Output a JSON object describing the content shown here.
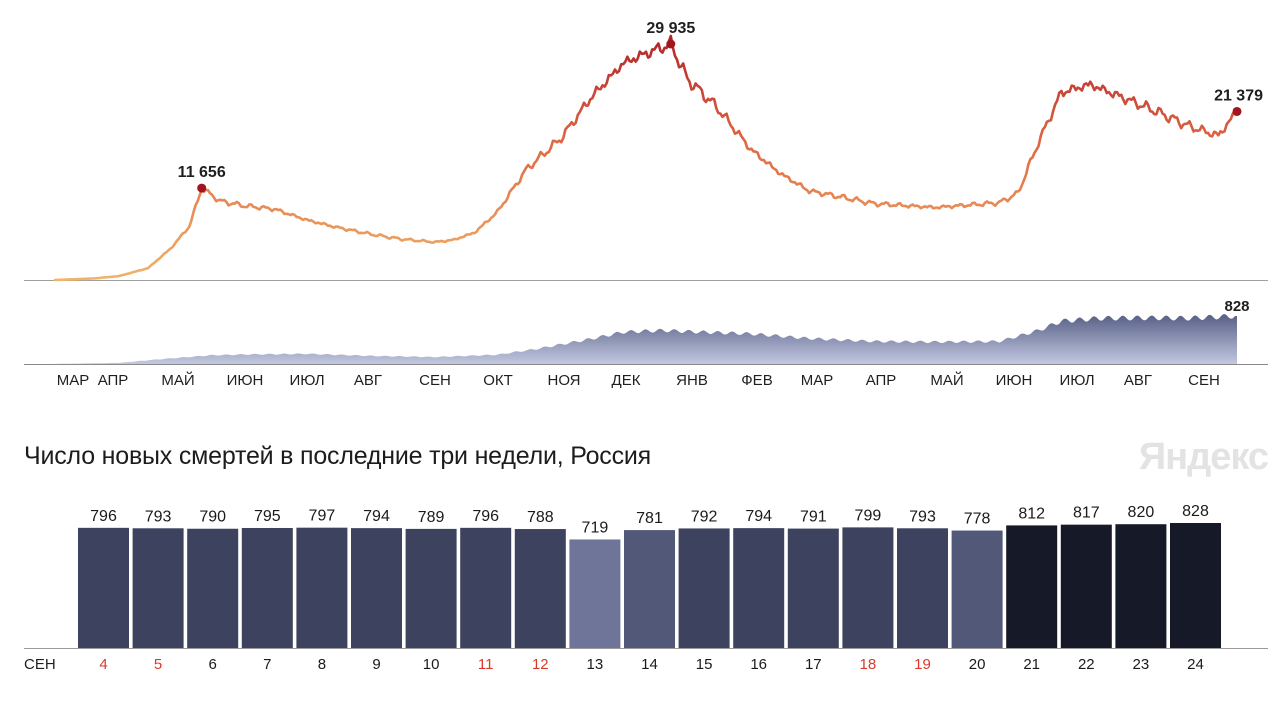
{
  "chart_data": [
    {
      "type": "line",
      "title": "",
      "series": [
        {
          "name": ""
        }
      ],
      "x": [
        "2020-03-01",
        "2020-03-20",
        "2020-04-01",
        "2020-04-15",
        "2020-04-26",
        "2020-05-05",
        "2020-05-11",
        "2020-05-20",
        "2020-06-01",
        "2020-06-15",
        "2020-07-01",
        "2020-07-15",
        "2020-08-01",
        "2020-08-15",
        "2020-09-01",
        "2020-09-10",
        "2020-09-20",
        "2020-10-01",
        "2020-10-15",
        "2020-11-01",
        "2020-11-15",
        "2020-12-01",
        "2020-12-10",
        "2020-12-24",
        "2021-01-01",
        "2021-01-15",
        "2021-02-01",
        "2021-02-15",
        "2021-03-01",
        "2021-03-15",
        "2021-04-01",
        "2021-05-01",
        "2021-06-01",
        "2021-06-10",
        "2021-06-20",
        "2021-07-01",
        "2021-07-15",
        "2021-08-01",
        "2021-08-15",
        "2021-09-01",
        "2021-09-15",
        "2021-09-24"
      ],
      "values": [
        0,
        200,
        500,
        1500,
        4000,
        6800,
        11656,
        10000,
        9400,
        9000,
        7600,
        6700,
        5800,
        5200,
        4800,
        5100,
        6000,
        8600,
        14000,
        18000,
        23000,
        27500,
        28500,
        29935,
        25500,
        22000,
        16500,
        13500,
        11300,
        10600,
        9700,
        9200,
        9800,
        11000,
        17500,
        23800,
        24800,
        23000,
        21500,
        19500,
        18300,
        21379
      ],
      "annotations": [
        {
          "label": "11 656"
        },
        {
          "label": "29 935"
        },
        {
          "label": "21 379"
        }
      ],
      "colors": {
        "low": "#f0b46a",
        "high": "#b3262b",
        "marker": "#a3141f",
        "baseline": "#a0a0a0"
      }
    },
    {
      "type": "area",
      "title": "",
      "xlabels": [
        "МАР",
        "АПР",
        "МАЙ",
        "ИЮН",
        "ИЮЛ",
        "АВГ",
        "СЕН",
        "ОКТ",
        "НОЯ",
        "ДЕК",
        "ЯНВ",
        "ФЕВ",
        "МАР",
        "АПР",
        "МАЙ",
        "ИЮН",
        "ИЮЛ",
        "АВГ",
        "СЕН"
      ],
      "x": [
        "2020-03-01",
        "2020-04-01",
        "2020-04-20",
        "2020-05-15",
        "2020-06-01",
        "2020-07-01",
        "2020-08-01",
        "2020-09-01",
        "2020-10-01",
        "2020-10-20",
        "2020-11-15",
        "2020-12-01",
        "2020-12-20",
        "2021-01-01",
        "2021-02-01",
        "2021-03-01",
        "2021-04-01",
        "2021-05-01",
        "2021-06-01",
        "2021-06-20",
        "2021-07-01",
        "2021-07-20",
        "2021-08-15",
        "2021-09-01",
        "2021-09-24"
      ],
      "values": [
        1,
        20,
        80,
        150,
        165,
        175,
        140,
        120,
        160,
        260,
        430,
        550,
        580,
        560,
        520,
        440,
        390,
        380,
        390,
        580,
        740,
        790,
        795,
        790,
        828
      ],
      "annotations": [
        {
          "label": "828"
        }
      ],
      "colors": {
        "top": "#5b6389",
        "bottom": "#c3c8e0"
      }
    },
    {
      "type": "bar",
      "title": "Число новых смертей в последние три недели, Россия",
      "month_label": "СЕН",
      "categories": [
        "4",
        "5",
        "6",
        "7",
        "8",
        "9",
        "10",
        "11",
        "12",
        "13",
        "14",
        "15",
        "16",
        "17",
        "18",
        "19",
        "20",
        "21",
        "22",
        "23",
        "24"
      ],
      "values": [
        796,
        793,
        790,
        795,
        797,
        794,
        789,
        796,
        788,
        719,
        781,
        792,
        794,
        791,
        799,
        793,
        778,
        812,
        817,
        820,
        828
      ],
      "label_colors": [
        "#d63b2b",
        "#d63b2b",
        "#1a1a1a",
        "#1a1a1a",
        "#1a1a1a",
        "#1a1a1a",
        "#1a1a1a",
        "#d63b2b",
        "#d63b2b",
        "#1a1a1a",
        "#1a1a1a",
        "#1a1a1a",
        "#1a1a1a",
        "#1a1a1a",
        "#d63b2b",
        "#d63b2b",
        "#1a1a1a",
        "#1a1a1a",
        "#1a1a1a",
        "#1a1a1a",
        "#1a1a1a"
      ],
      "bar_colors": [
        "#3d435e",
        "#3d435e",
        "#3d435e",
        "#3d435e",
        "#3d435e",
        "#3d435e",
        "#3d435e",
        "#3d435e",
        "#3d435e",
        "#6e7598",
        "#525878",
        "#3d435e",
        "#3d435e",
        "#3d435e",
        "#3d435e",
        "#3d435e",
        "#525878",
        "#161927",
        "#161927",
        "#161927",
        "#161927"
      ]
    }
  ],
  "logo": {
    "text": "Яндекс"
  }
}
